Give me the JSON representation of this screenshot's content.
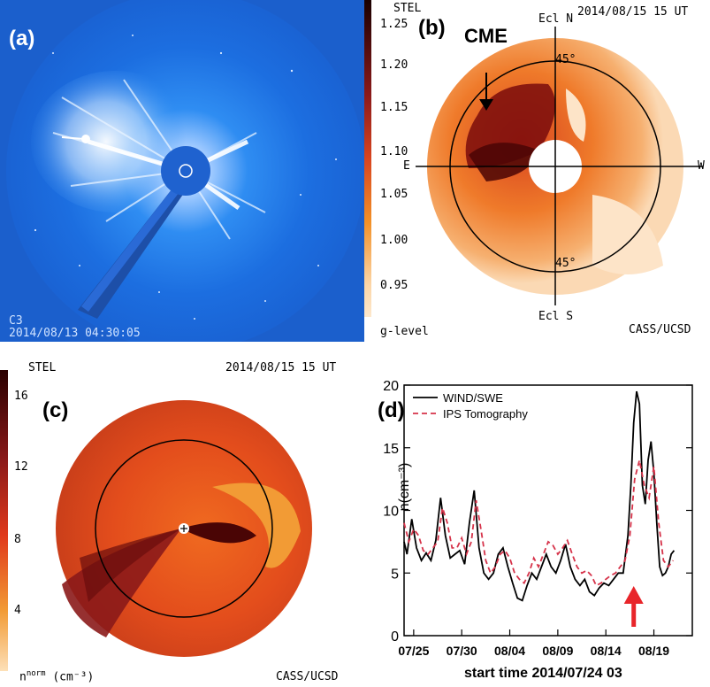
{
  "panel_a": {
    "label": "(a)",
    "instrument": "C3",
    "timestamp": "2014/08/13 04:30:05"
  },
  "panel_b": {
    "label": "(b)",
    "header_left": "STEL",
    "header_right": "2014/08/15 15 UT",
    "cme_label": "CME",
    "north": "Ecl N",
    "south": "Ecl S",
    "east": "E",
    "west": "W",
    "angle_top": "45°",
    "angle_bottom": "45°",
    "credit": "CASS/UCSD",
    "colorbar_label": "g-level",
    "colorbar_ticks": [
      "1.25",
      "1.20",
      "1.15",
      "1.10",
      "1.05",
      "1.00",
      "0.95"
    ]
  },
  "panel_c": {
    "label": "(c)",
    "header_left": "STEL",
    "header_right": "2014/08/15 15 UT",
    "credit": "CASS/UCSD",
    "colorbar_label": "n",
    "colorbar_label_sup": "norm",
    "colorbar_unit": "(cm⁻³)",
    "colorbar_ticks": [
      "16",
      "12",
      "8",
      "4"
    ]
  },
  "panel_d": {
    "label": "(d)",
    "arrow_color": "#e8252a"
  },
  "chart_data": {
    "type": "line",
    "title": "",
    "xlabel": "start time 2014/07/24 03",
    "ylabel": "n(cm⁻³)",
    "xlim": [
      0,
      30
    ],
    "ylim": [
      0,
      20
    ],
    "yticks": [
      0,
      5,
      10,
      15,
      20
    ],
    "xticks": [
      1,
      6,
      11,
      16,
      21,
      26
    ],
    "xtick_labels": [
      "07/25",
      "07/30",
      "08/04",
      "08/09",
      "08/14",
      "08/19"
    ],
    "legend": "top-left",
    "series": [
      {
        "name": "WIND/SWE",
        "color": "#000000",
        "style": "solid",
        "x": [
          0,
          0.3,
          0.8,
          1.3,
          1.8,
          2.3,
          2.8,
          3.3,
          3.8,
          4.3,
          4.8,
          5.3,
          5.8,
          6.3,
          6.8,
          7.3,
          7.8,
          8.3,
          8.8,
          9.3,
          9.8,
          10.3,
          10.8,
          11.3,
          11.8,
          12.3,
          12.8,
          13.3,
          13.8,
          14.3,
          14.8,
          15.3,
          15.8,
          16.3,
          16.8,
          17.3,
          17.8,
          18.3,
          18.8,
          19.3,
          19.8,
          20.3,
          20.8,
          21.3,
          21.8,
          22.3,
          22.8,
          23.3,
          23.6,
          23.9,
          24.2,
          24.5,
          24.8,
          25.1,
          25.4,
          25.7,
          26.0,
          26.3,
          26.6,
          26.9,
          27.2,
          27.5,
          27.8,
          28.1
        ],
        "values": [
          7.5,
          6.5,
          9.3,
          7.0,
          6.0,
          6.6,
          6.0,
          7.6,
          11.0,
          8.0,
          6.2,
          6.5,
          6.8,
          5.7,
          9.0,
          11.6,
          7.0,
          5.0,
          4.5,
          5.0,
          6.5,
          7.0,
          5.5,
          4.2,
          3.0,
          2.8,
          4.0,
          5.0,
          4.5,
          5.5,
          6.5,
          5.5,
          5.0,
          6.0,
          7.3,
          5.5,
          4.5,
          4.0,
          4.5,
          3.5,
          3.2,
          3.8,
          4.2,
          4.0,
          4.5,
          5.0,
          5.0,
          8.0,
          12.0,
          17.0,
          19.5,
          18.5,
          12.0,
          10.5,
          14.0,
          15.5,
          13.0,
          9.0,
          5.5,
          4.8,
          5.0,
          5.5,
          6.5,
          6.8
        ]
      },
      {
        "name": "IPS Tomography",
        "color": "#d6334a",
        "style": "dashed",
        "x": [
          0,
          0.5,
          1.0,
          1.5,
          2.0,
          2.5,
          3.0,
          3.5,
          4.0,
          4.5,
          5.0,
          5.5,
          6.0,
          6.5,
          7.0,
          7.5,
          8.0,
          8.5,
          9.0,
          9.5,
          10.0,
          10.5,
          11.0,
          11.5,
          12.0,
          12.5,
          13.0,
          13.5,
          14.0,
          14.5,
          15.0,
          15.5,
          16.0,
          16.5,
          17.0,
          17.5,
          18.0,
          18.5,
          19.0,
          19.5,
          20.0,
          20.5,
          21.0,
          21.5,
          22.0,
          22.5,
          23.0,
          23.5,
          24.0,
          24.5,
          25.0,
          25.5,
          26.0,
          26.5,
          27.0,
          27.5,
          28.0
        ],
        "values": [
          9.0,
          7.5,
          8.5,
          8.0,
          6.8,
          6.5,
          7.0,
          7.5,
          10.2,
          9.0,
          7.0,
          7.0,
          7.8,
          6.5,
          7.5,
          10.8,
          8.5,
          6.0,
          5.0,
          5.5,
          6.5,
          6.8,
          6.2,
          5.0,
          4.5,
          4.2,
          5.0,
          6.2,
          5.5,
          6.5,
          7.5,
          7.2,
          6.5,
          7.0,
          7.6,
          6.5,
          5.5,
          5.0,
          5.2,
          4.8,
          4.0,
          4.2,
          4.5,
          4.8,
          5.0,
          5.5,
          6.0,
          8.0,
          12.5,
          14.0,
          12.0,
          11.0,
          13.5,
          9.0,
          6.0,
          5.5,
          6.0
        ]
      }
    ]
  }
}
